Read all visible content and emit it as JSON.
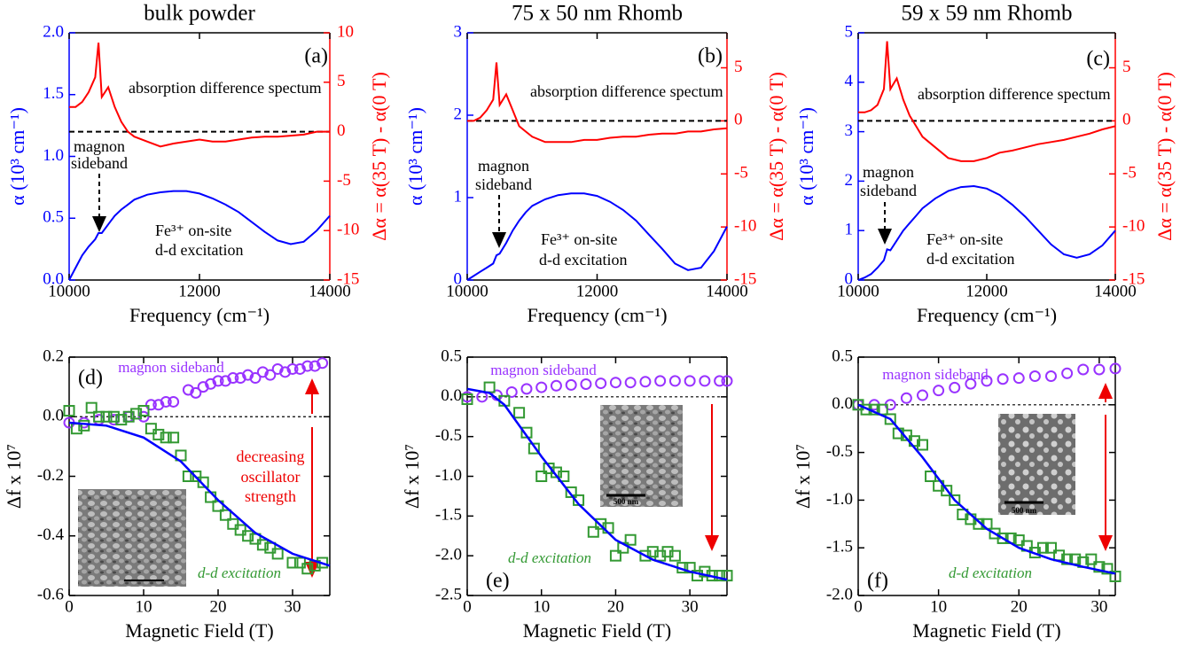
{
  "chart_data": [
    {
      "type": "line",
      "title": "bulk powder",
      "panel_label": "(a)",
      "x_label": "Frequency (cm⁻¹)",
      "y_label": "α (10³ cm⁻¹)",
      "y2_label": "Δα = α(35 T) - α(0 T)",
      "xlim": [
        10000,
        14000
      ],
      "xticks": [
        10000,
        12000,
        14000
      ],
      "ylim": [
        0,
        2
      ],
      "yticks": [
        {
          "value": 0,
          "label": "0.0"
        },
        0.5,
        {
          "value": 1,
          "label": "1.0"
        },
        1.5,
        {
          "value": 2,
          "label": "2.0"
        }
      ],
      "y2lim": [
        -15,
        10
      ],
      "y2ticks": [
        -15,
        -10,
        -5,
        0,
        5,
        10
      ],
      "y2_reference": 0,
      "x": [
        10000,
        10100,
        10200,
        10300,
        10400,
        10450,
        10500,
        10600,
        10700,
        10800,
        10900,
        11000,
        11200,
        11400,
        11600,
        11800,
        12000,
        12200,
        12400,
        12600,
        12800,
        13000,
        13200,
        13400,
        13600,
        13800,
        14000
      ],
      "series": [
        {
          "color": "#0000ff",
          "values": [
            0.0,
            0.1,
            0.2,
            0.27,
            0.33,
            0.38,
            0.38,
            0.45,
            0.52,
            0.57,
            0.61,
            0.65,
            0.69,
            0.71,
            0.72,
            0.72,
            0.7,
            0.66,
            0.61,
            0.55,
            0.47,
            0.39,
            0.32,
            0.29,
            0.31,
            0.4,
            0.52
          ]
        },
        {
          "color": "#ff0000",
          "axis": "y2",
          "values": [
            2.5,
            2.5,
            3,
            4,
            5.5,
            9,
            3.5,
            4.5,
            2.5,
            1,
            0,
            -0.5,
            -1,
            -1.5,
            -1.2,
            -1,
            -0.8,
            -1,
            -1,
            -0.8,
            -0.6,
            -0.5,
            -0.5,
            -0.4,
            -0.3,
            0,
            0
          ]
        }
      ],
      "annotations": [
        "absorption difference spectum",
        "magnon",
        "sideband",
        "Fe³⁺ on-site",
        "d-d excitation"
      ]
    },
    {
      "type": "line",
      "title": "75 x 50 nm Rhomb",
      "panel_label": "(b)",
      "x_label": "Frequency (cm⁻¹)",
      "y_label": "α (10³ cm⁻¹)",
      "y2_label": "Δα = α(35 T) - α(0 T)",
      "xlim": [
        10000,
        14000
      ],
      "xticks": [
        10000,
        12000,
        14000
      ],
      "ylim": [
        0,
        3
      ],
      "yticks": [
        0,
        1,
        2,
        3
      ],
      "y2lim": [
        -15,
        8.3
      ],
      "y2ticks": [
        -15,
        -10,
        -5,
        0,
        5
      ],
      "y2_reference": 0,
      "x": [
        10000,
        10100,
        10200,
        10300,
        10400,
        10450,
        10500,
        10600,
        10700,
        10800,
        10900,
        11000,
        11200,
        11400,
        11600,
        11800,
        12000,
        12200,
        12400,
        12600,
        12800,
        13000,
        13200,
        13400,
        13600,
        13800,
        14000
      ],
      "series": [
        {
          "color": "#0000ff",
          "values": [
            0,
            0.05,
            0.1,
            0.15,
            0.2,
            0.3,
            0.32,
            0.45,
            0.6,
            0.72,
            0.82,
            0.9,
            0.98,
            1.03,
            1.05,
            1.05,
            1.02,
            0.95,
            0.85,
            0.72,
            0.55,
            0.38,
            0.2,
            0.12,
            0.15,
            0.35,
            0.65
          ]
        },
        {
          "color": "#ff0000",
          "axis": "y2",
          "values": [
            0,
            0,
            0.3,
            1,
            2,
            5.5,
            1.5,
            2.5,
            1,
            -0.5,
            -1,
            -1.5,
            -2,
            -2,
            -2,
            -1.8,
            -1.8,
            -1.6,
            -1.5,
            -1.5,
            -1.3,
            -1.2,
            -1.2,
            -1,
            -1,
            -0.8,
            -0.7
          ]
        }
      ],
      "annotations": [
        "absorption difference spectum",
        "magnon",
        "sideband",
        "Fe³⁺ on-site",
        "d-d excitation"
      ]
    },
    {
      "type": "line",
      "title": "59 x 59 nm Rhomb",
      "panel_label": "(c)",
      "x_label": "Frequency (cm⁻¹)",
      "y_label": "α (10³ cm⁻¹)",
      "y2_label": "Δα = α(35 T) - α(0 T)",
      "xlim": [
        10000,
        14000
      ],
      "xticks": [
        10000,
        12000,
        14000
      ],
      "ylim": [
        0,
        5
      ],
      "yticks": [
        0,
        1,
        2,
        3,
        4,
        5
      ],
      "y2lim": [
        -15,
        8.3
      ],
      "y2ticks": [
        -15,
        -10,
        -5,
        0,
        5
      ],
      "y2_reference": 0,
      "x": [
        10000,
        10100,
        10200,
        10300,
        10400,
        10450,
        10500,
        10600,
        10700,
        10800,
        10900,
        11000,
        11200,
        11400,
        11600,
        11800,
        12000,
        12200,
        12400,
        12600,
        12800,
        13000,
        13200,
        13400,
        13600,
        13800,
        14000
      ],
      "series": [
        {
          "color": "#0000ff",
          "values": [
            0,
            0.05,
            0.12,
            0.25,
            0.4,
            0.62,
            0.6,
            0.8,
            1.0,
            1.15,
            1.3,
            1.45,
            1.65,
            1.8,
            1.88,
            1.9,
            1.85,
            1.72,
            1.52,
            1.28,
            1.0,
            0.72,
            0.52,
            0.45,
            0.52,
            0.7,
            1.0
          ]
        },
        {
          "color": "#ff0000",
          "axis": "y2",
          "values": [
            0.8,
            0.8,
            1,
            1.5,
            3,
            7.5,
            3,
            4,
            2,
            0.5,
            -0.5,
            -1.5,
            -2.5,
            -3.5,
            -3.8,
            -3.8,
            -3.5,
            -3,
            -2.8,
            -2.5,
            -2.2,
            -2,
            -1.8,
            -1.5,
            -1.2,
            -0.8,
            -0.5
          ]
        }
      ],
      "annotations": [
        "absorption difference spectum",
        "magnon",
        "sideband",
        "Fe³⁺ on-site",
        "d-d excitation"
      ]
    },
    {
      "type": "scatter",
      "panel_label": "(d)",
      "x_label": "Magnetic Field (T)",
      "y_label": "Δf x 10⁷",
      "xlim": [
        0,
        35
      ],
      "xticks": [
        0,
        10,
        20,
        30
      ],
      "ylim": [
        -0.6,
        0.2
      ],
      "yticks": [
        -0.6,
        -0.4,
        -0.2,
        {
          "value": 0,
          "label": "0.0"
        },
        0.2
      ],
      "y_reference": 0,
      "series": [
        {
          "name": "magnon sideband",
          "color": "#9933ff",
          "marker": "circle",
          "x": [
            0,
            2,
            4,
            6,
            8,
            10,
            11,
            12,
            13,
            14,
            16,
            17,
            18,
            19,
            20,
            21,
            22,
            23,
            24,
            25,
            26,
            27,
            28,
            29,
            30,
            31,
            32,
            33,
            34
          ],
          "values": [
            -0.02,
            -0.02,
            -0.01,
            -0.01,
            0.0,
            0.0,
            0.04,
            0.04,
            0.05,
            0.05,
            0.09,
            0.08,
            0.1,
            0.11,
            0.12,
            0.12,
            0.13,
            0.13,
            0.14,
            0.13,
            0.15,
            0.14,
            0.16,
            0.15,
            0.16,
            0.16,
            0.17,
            0.17,
            0.18
          ]
        },
        {
          "name": "d-d excitation",
          "color": "#339933",
          "marker": "square",
          "x": [
            0,
            1,
            2,
            3,
            4,
            5,
            6,
            7,
            8,
            9,
            10,
            11,
            12,
            13,
            14,
            15,
            16,
            17,
            18,
            19,
            20,
            21,
            22,
            23,
            24,
            25,
            26,
            27,
            28,
            30,
            31,
            32,
            33,
            34
          ],
          "values": [
            0.02,
            -0.04,
            -0.03,
            0.03,
            0.0,
            0.0,
            0.0,
            -0.01,
            0.0,
            0.01,
            0.02,
            -0.04,
            -0.06,
            -0.07,
            -0.07,
            -0.13,
            -0.2,
            -0.2,
            -0.22,
            -0.27,
            -0.3,
            -0.33,
            -0.36,
            -0.38,
            -0.4,
            -0.41,
            -0.43,
            -0.44,
            -0.46,
            -0.49,
            -0.49,
            -0.51,
            -0.5,
            -0.49
          ]
        },
        {
          "color": "#0000ff",
          "marker": "line",
          "x": [
            0,
            5,
            10,
            15,
            20,
            25,
            30,
            35
          ],
          "values": [
            -0.02,
            -0.03,
            -0.07,
            -0.15,
            -0.28,
            -0.39,
            -0.46,
            -0.5
          ]
        }
      ],
      "annotations": [
        "decreasing",
        "oscillator",
        "strength"
      ]
    },
    {
      "type": "scatter",
      "panel_label": "(e)",
      "x_label": "Magnetic Field (T)",
      "y_label": "Δf x 10⁷",
      "xlim": [
        0,
        35
      ],
      "xticks": [
        0,
        10,
        20,
        30
      ],
      "ylim": [
        -2.5,
        0.5
      ],
      "yticks": [
        -2.5,
        {
          "value": -2,
          "label": "-2.0"
        },
        -1.5,
        {
          "value": -1,
          "label": "-1.0"
        },
        -0.5,
        {
          "value": 0,
          "label": "0.0"
        },
        0.5
      ],
      "y_reference": 0,
      "series": [
        {
          "name": "magnon sideband",
          "color": "#9933ff",
          "marker": "circle",
          "x": [
            0,
            2,
            4,
            6,
            8,
            10,
            12,
            14,
            16,
            18,
            20,
            22,
            24,
            26,
            28,
            30,
            32,
            34,
            35
          ],
          "values": [
            0,
            0,
            0.02,
            0.06,
            0.1,
            0.12,
            0.14,
            0.15,
            0.16,
            0.17,
            0.18,
            0.18,
            0.19,
            0.2,
            0.2,
            0.2,
            0.2,
            0.2,
            0.2
          ]
        },
        {
          "name": "d-d excitation",
          "color": "#339933",
          "marker": "square",
          "x": [
            0,
            3,
            5,
            7,
            8,
            9,
            10,
            11,
            12,
            13,
            14,
            15,
            17,
            18,
            19,
            20,
            21,
            22,
            24,
            25,
            26,
            27,
            28,
            29,
            30,
            31,
            32,
            33,
            34,
            35
          ],
          "values": [
            -0.03,
            0.12,
            -0.05,
            -0.2,
            -0.45,
            -0.65,
            -1.0,
            -0.9,
            -0.95,
            -1.0,
            -1.2,
            -1.3,
            -1.7,
            -1.6,
            -1.65,
            -2.0,
            -1.9,
            -1.8,
            -2.0,
            -1.95,
            -2.0,
            -1.95,
            -2.0,
            -2.15,
            -2.15,
            -2.25,
            -2.2,
            -2.25,
            -2.25,
            -2.25
          ]
        },
        {
          "color": "#0000ff",
          "marker": "line",
          "x": [
            0,
            3,
            5,
            10,
            15,
            20,
            25,
            30,
            35
          ],
          "values": [
            0.1,
            0.05,
            -0.1,
            -0.75,
            -1.35,
            -1.8,
            -2.05,
            -2.2,
            -2.3
          ]
        }
      ],
      "scale_bar": "500 nm"
    },
    {
      "type": "scatter",
      "panel_label": "(f)",
      "x_label": "Magnetic Field (T)",
      "y_label": "Δf x 10⁷",
      "xlim": [
        0,
        32
      ],
      "xticks": [
        0,
        10,
        20,
        30
      ],
      "ylim": [
        -2,
        0.5
      ],
      "yticks": [
        {
          "value": -2,
          "label": "-2.0"
        },
        -1.5,
        {
          "value": -1,
          "label": "-1.0"
        },
        -0.5,
        {
          "value": 0,
          "label": "0.0"
        },
        0.5
      ],
      "y_reference": 0,
      "series": [
        {
          "name": "magnon sideband",
          "color": "#9933ff",
          "marker": "circle",
          "x": [
            0,
            2,
            4,
            6,
            8,
            10,
            12,
            14,
            16,
            18,
            20,
            22,
            24,
            26,
            28,
            30,
            32
          ],
          "values": [
            0,
            0,
            0,
            0.07,
            0.1,
            0.15,
            0.18,
            0.22,
            0.25,
            0.27,
            0.28,
            0.3,
            0.3,
            0.33,
            0.37,
            0.37,
            0.38
          ]
        },
        {
          "name": "d-d excitation",
          "color": "#339933",
          "marker": "square",
          "x": [
            0,
            1,
            2,
            3,
            4,
            5,
            6,
            7,
            8,
            9,
            10,
            11,
            12,
            13,
            14,
            15,
            16,
            17,
            18,
            19,
            20,
            21,
            22,
            23,
            24,
            25,
            26,
            27,
            28,
            29,
            30,
            31,
            32
          ],
          "values": [
            0,
            -0.05,
            -0.05,
            -0.05,
            -0.15,
            -0.3,
            -0.32,
            -0.38,
            -0.42,
            -0.75,
            -0.85,
            -0.9,
            -1.0,
            -1.15,
            -1.2,
            -1.25,
            -1.25,
            -1.35,
            -1.4,
            -1.4,
            -1.42,
            -1.48,
            -1.55,
            -1.5,
            -1.5,
            -1.58,
            -1.62,
            -1.62,
            -1.65,
            -1.62,
            -1.7,
            -1.72,
            -1.8
          ]
        },
        {
          "color": "#0000ff",
          "marker": "line",
          "x": [
            0,
            4,
            8,
            12,
            16,
            20,
            24,
            28,
            32
          ],
          "values": [
            0,
            -0.15,
            -0.55,
            -1.0,
            -1.3,
            -1.5,
            -1.62,
            -1.7,
            -1.77
          ]
        }
      ],
      "scale_bar": "500 nm"
    }
  ]
}
